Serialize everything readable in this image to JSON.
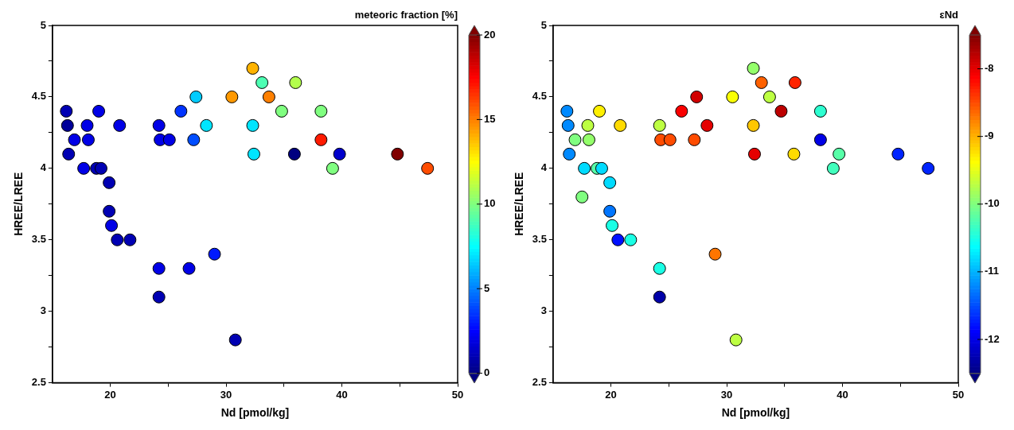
{
  "chart_data": [
    {
      "type": "scatter",
      "xlabel": "Nd [pmol/kg]",
      "ylabel": "HREE/LREE",
      "clabel": "meteoric fraction [%]",
      "marker": "circle",
      "xlim": [
        15,
        50
      ],
      "ylim": [
        2.5,
        5
      ],
      "xticks": [
        20,
        {
          "value": 25,
          "label": null
        },
        30,
        {
          "value": 35,
          "label": null
        },
        40,
        {
          "value": 45,
          "label": null
        },
        50
      ],
      "yticks": [
        2.5,
        {
          "value": 2.75,
          "label": null
        },
        3,
        {
          "value": 3.25,
          "label": null
        },
        3.5,
        {
          "value": 3.75,
          "label": null
        },
        4,
        {
          "value": 4.25,
          "label": null
        },
        4.5,
        {
          "value": 4.75,
          "label": null
        },
        5
      ],
      "clim": [
        0,
        20
      ],
      "cticks": [
        0,
        5,
        10,
        15,
        20
      ],
      "x": [
        16.2,
        19.0,
        16.3,
        18.0,
        20.8,
        24.2,
        16.9,
        18.1,
        24.3,
        25.1,
        27.2,
        26.1,
        27.4,
        28.3,
        30.5,
        32.3,
        32.3,
        32.4,
        16.4,
        17.7,
        18.8,
        19.2,
        19.9,
        19.9,
        20.1,
        20.6,
        21.7,
        29.0,
        24.2,
        26.8,
        24.2,
        30.8,
        33.1,
        36.0,
        33.7,
        34.8,
        38.2,
        38.2,
        35.9,
        39.8,
        44.8,
        39.2,
        47.4
      ],
      "values": [
        4.4,
        4.4,
        4.3,
        4.3,
        4.3,
        4.3,
        4.2,
        4.2,
        4.2,
        4.2,
        4.2,
        4.4,
        4.5,
        4.3,
        4.5,
        4.7,
        4.3,
        4.1,
        4.1,
        4.0,
        4.0,
        4.0,
        3.9,
        3.7,
        3.6,
        3.5,
        3.5,
        3.4,
        3.3,
        3.3,
        3.1,
        2.8,
        4.6,
        4.6,
        4.5,
        4.4,
        4.4,
        4.2,
        4.1,
        4.1,
        4.1,
        4.0,
        4.0
      ],
      "cvalues": [
        1,
        2,
        0.5,
        2,
        2,
        2,
        2,
        2,
        2,
        2,
        4,
        3.5,
        6.5,
        7,
        14.5,
        14,
        7,
        7,
        1,
        2,
        1,
        1,
        1,
        1,
        2,
        1,
        1,
        3,
        2,
        2,
        1,
        1,
        9,
        11,
        15,
        10,
        10,
        17,
        0,
        1.5,
        20,
        10,
        16
      ]
    },
    {
      "type": "scatter",
      "xlabel": "Nd [pmol/kg]",
      "ylabel": "HREE/LREE",
      "clabel": "εNd",
      "marker": "circle",
      "xlim": [
        15,
        50
      ],
      "ylim": [
        2.5,
        5
      ],
      "xticks": [
        20,
        {
          "value": 25,
          "label": null
        },
        30,
        {
          "value": 35,
          "label": null
        },
        40,
        {
          "value": 45,
          "label": null
        },
        50
      ],
      "yticks": [
        2.5,
        {
          "value": 2.75,
          "label": null
        },
        3,
        {
          "value": 3.25,
          "label": null
        },
        3.5,
        {
          "value": 3.75,
          "label": null
        },
        4,
        {
          "value": 4.25,
          "label": null
        },
        4.5,
        {
          "value": 4.75,
          "label": null
        },
        5
      ],
      "clim": [
        -12.5,
        -7.5
      ],
      "cticks": [
        -12,
        -11,
        -10,
        -9,
        -8
      ],
      "x": [
        16.2,
        19.0,
        16.3,
        18.0,
        20.8,
        24.2,
        16.9,
        18.1,
        24.3,
        25.1,
        27.2,
        26.1,
        27.4,
        28.3,
        30.5,
        32.3,
        32.3,
        32.4,
        16.4,
        17.7,
        18.8,
        19.2,
        19.9,
        19.9,
        20.1,
        20.6,
        21.7,
        29.0,
        24.2,
        17.5,
        24.2,
        30.8,
        33.0,
        35.9,
        33.7,
        34.7,
        38.1,
        38.1,
        35.8,
        39.7,
        44.8,
        39.2,
        47.4
      ],
      "values": [
        4.4,
        4.4,
        4.3,
        4.3,
        4.3,
        4.3,
        4.2,
        4.2,
        4.2,
        4.2,
        4.2,
        4.4,
        4.5,
        4.3,
        4.5,
        4.7,
        4.3,
        4.1,
        4.1,
        4.0,
        4.0,
        4.0,
        3.9,
        3.7,
        3.6,
        3.5,
        3.5,
        3.4,
        3.3,
        3.8,
        3.1,
        2.8,
        4.6,
        4.6,
        4.5,
        4.4,
        4.4,
        4.2,
        4.1,
        4.1,
        4.1,
        4.0,
        4.0
      ],
      "cvalues": [
        -11.2,
        -9.3,
        -11.2,
        -9.7,
        -9.2,
        -9.7,
        -10.0,
        -9.9,
        -8.5,
        -8.5,
        -8.5,
        -8.1,
        -7.9,
        -8.0,
        -9.4,
        -9.9,
        -9.1,
        -8.0,
        -11.2,
        -10.8,
        -10.2,
        -10.8,
        -10.8,
        -11.3,
        -10.5,
        -11.8,
        -10.5,
        -8.7,
        -10.5,
        -10.0,
        -12.3,
        -9.7,
        -8.6,
        -8.3,
        -9.7,
        -7.8,
        -10.4,
        -12.0,
        -9.2,
        -10.2,
        -11.7,
        -10.3,
        -11.7
      ]
    }
  ]
}
